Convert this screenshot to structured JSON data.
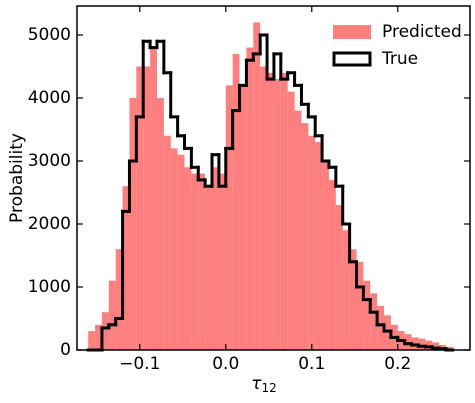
{
  "chart_data": {
    "type": "histogram",
    "ylabel": "Probability",
    "xlabel": {
      "symbol": "τ",
      "subscript": "12"
    },
    "bins": [
      -0.16,
      -0.152,
      -0.144,
      -0.136,
      -0.128,
      -0.12,
      -0.112,
      -0.104,
      -0.096,
      -0.088,
      -0.08,
      -0.072,
      -0.064,
      -0.056,
      -0.048,
      -0.04,
      -0.032,
      -0.024,
      -0.016,
      -0.008,
      0,
      0.008,
      0.016,
      0.024,
      0.032,
      0.04,
      0.048,
      0.056,
      0.064,
      0.072,
      0.08,
      0.088,
      0.096,
      0.104,
      0.112,
      0.12,
      0.128,
      0.136,
      0.144,
      0.152,
      0.16,
      0.168,
      0.176,
      0.184,
      0.192,
      0.2,
      0.208,
      0.216,
      0.224,
      0.232,
      0.24,
      0.248,
      0.256,
      0.264
    ],
    "series": [
      {
        "name": "Predicted",
        "style": "filled",
        "color": "#ff7f7f",
        "values": [
          300,
          400,
          600,
          1100,
          1600,
          2600,
          4000,
          4500,
          4500,
          4800,
          4000,
          3400,
          3200,
          3100,
          2900,
          2800,
          2800,
          2600,
          2900,
          2800,
          4200,
          4700,
          4200,
          4800,
          5200,
          4500,
          4400,
          4300,
          4400,
          4100,
          3800,
          3600,
          3400,
          3300,
          3000,
          2700,
          2300,
          1900,
          1600,
          1400,
          1100,
          900,
          700,
          550,
          400,
          300,
          250,
          200,
          180,
          150,
          120,
          80,
          50
        ]
      },
      {
        "name": "True",
        "style": "step",
        "color": "#000000",
        "values": [
          0,
          0,
          350,
          400,
          500,
          2200,
          3000,
          3700,
          4900,
          4800,
          4900,
          4400,
          3700,
          3400,
          3200,
          2900,
          2700,
          2600,
          3100,
          2600,
          3200,
          3800,
          4200,
          4600,
          4700,
          5000,
          4300,
          4700,
          4300,
          4400,
          4200,
          3900,
          3700,
          3400,
          3000,
          2900,
          2600,
          2000,
          1400,
          1000,
          800,
          600,
          400,
          300,
          200,
          150,
          100,
          80,
          60,
          50,
          30,
          20,
          0
        ]
      }
    ],
    "xlim": [
      -0.173,
      0.284
    ],
    "ylim": [
      0,
      5460
    ],
    "xticks": [
      {
        "value": -0.1,
        "label": "−0.1"
      },
      {
        "value": 0,
        "label": "0.0"
      },
      0.1,
      0.2
    ],
    "yticks": [
      0,
      1000,
      2000,
      3000,
      4000,
      5000
    ],
    "legend": "upper right"
  }
}
